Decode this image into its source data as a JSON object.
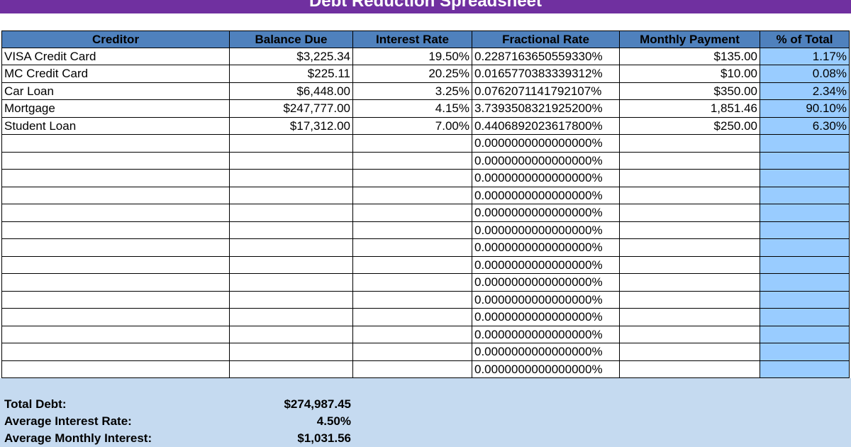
{
  "title": "Debt Reduction Spreadsheet",
  "table": {
    "headers": [
      "Creditor",
      "Balance Due",
      "Interest Rate",
      "Fractional Rate",
      "Monthly Payment",
      "% of Total"
    ],
    "rows": [
      [
        "VISA Credit Card",
        "$3,225.34",
        "19.50%",
        "0.2287163650559330%",
        "$135.00",
        "1.17%"
      ],
      [
        "MC Credit Card",
        "$225.11",
        "20.25%",
        "0.0165770383339312%",
        "$10.00",
        "0.08%"
      ],
      [
        "Car Loan",
        "$6,448.00",
        "3.25%",
        "0.0762071141792107%",
        "$350.00",
        "2.34%"
      ],
      [
        "Mortgage",
        "$247,777.00",
        "4.15%",
        "3.7393508321925200%",
        "1,851.46",
        "90.10%"
      ],
      [
        "Student Loan",
        "$17,312.00",
        "7.00%",
        "0.4406892023617800%",
        "$250.00",
        "6.30%"
      ],
      [
        "",
        "",
        "",
        "0.0000000000000000%",
        "",
        ""
      ],
      [
        "",
        "",
        "",
        "0.0000000000000000%",
        "",
        ""
      ],
      [
        "",
        "",
        "",
        "0.0000000000000000%",
        "",
        ""
      ],
      [
        "",
        "",
        "",
        "0.0000000000000000%",
        "",
        ""
      ],
      [
        "",
        "",
        "",
        "0.0000000000000000%",
        "",
        ""
      ],
      [
        "",
        "",
        "",
        "0.0000000000000000%",
        "",
        ""
      ],
      [
        "",
        "",
        "",
        "0.0000000000000000%",
        "",
        ""
      ],
      [
        "",
        "",
        "",
        "0.0000000000000000%",
        "",
        ""
      ],
      [
        "",
        "",
        "",
        "0.0000000000000000%",
        "",
        ""
      ],
      [
        "",
        "",
        "",
        "0.0000000000000000%",
        "",
        ""
      ],
      [
        "",
        "",
        "",
        "0.0000000000000000%",
        "",
        ""
      ],
      [
        "",
        "",
        "",
        "0.0000000000000000%",
        "",
        ""
      ],
      [
        "",
        "",
        "",
        "0.0000000000000000%",
        "",
        ""
      ],
      [
        "",
        "",
        "",
        "0.0000000000000000%",
        "",
        ""
      ]
    ]
  },
  "summary": {
    "total_debt_label": "Total Debt:",
    "total_debt_value": "$274,987.45",
    "avg_rate_label": "Average Interest Rate:",
    "avg_rate_value": "4.50%",
    "avg_monthly_interest_label": "Average Monthly Interest:",
    "avg_monthly_interest_value": "$1,031.56"
  },
  "colors": {
    "title_bar": "#7030a0",
    "header": "#4f81bd",
    "percent_column": "#99ccff",
    "summary_band": "#c5daf0"
  }
}
